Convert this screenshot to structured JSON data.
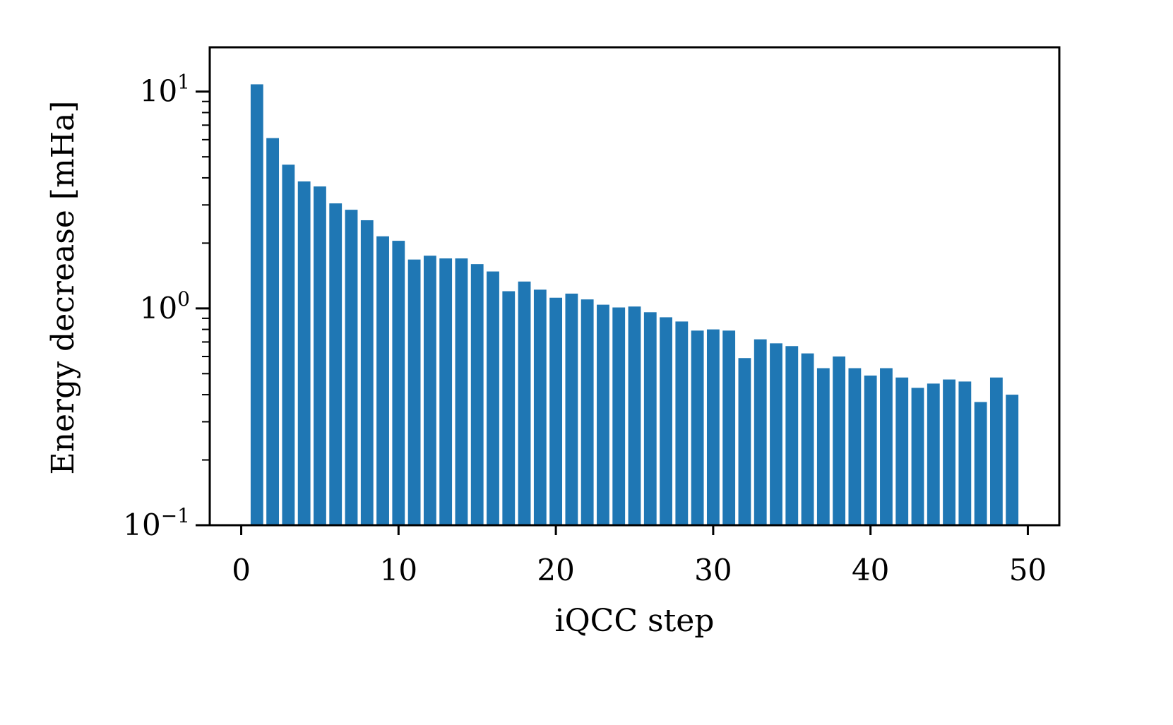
{
  "chart_data": {
    "type": "bar",
    "x": [
      1,
      2,
      3,
      4,
      5,
      6,
      7,
      8,
      9,
      10,
      11,
      12,
      13,
      14,
      15,
      16,
      17,
      18,
      19,
      20,
      21,
      22,
      23,
      24,
      25,
      26,
      27,
      28,
      29,
      30,
      31,
      32,
      33,
      34,
      35,
      36,
      37,
      38,
      39,
      40,
      41,
      42,
      43,
      44,
      45,
      46,
      47,
      48,
      49
    ],
    "values": [
      10.8,
      6.1,
      4.6,
      3.85,
      3.65,
      3.05,
      2.85,
      2.55,
      2.15,
      2.05,
      1.68,
      1.75,
      1.7,
      1.7,
      1.6,
      1.48,
      1.2,
      1.33,
      1.22,
      1.12,
      1.17,
      1.1,
      1.04,
      1.01,
      1.02,
      0.96,
      0.91,
      0.87,
      0.79,
      0.8,
      0.79,
      0.59,
      0.72,
      0.69,
      0.67,
      0.62,
      0.53,
      0.6,
      0.53,
      0.49,
      0.53,
      0.48,
      0.43,
      0.45,
      0.47,
      0.46,
      0.37,
      0.48,
      0.4
    ],
    "color": "#1f77b4",
    "xlabel": "iQCC step",
    "ylabel": "Energy decrease [mHa]",
    "xlim": [
      -2,
      52
    ],
    "ylim": [
      0.1,
      16
    ],
    "yscale": "log",
    "xticks": [
      0,
      10,
      20,
      30,
      40,
      50
    ],
    "xtick_labels": [
      "0",
      "10",
      "20",
      "30",
      "40",
      "50"
    ],
    "yticks": [
      0.1,
      1,
      10
    ],
    "ytick_labels": [
      {
        "base": "10",
        "exp": "−1"
      },
      {
        "base": "10",
        "exp": "0"
      },
      {
        "base": "10",
        "exp": "1"
      }
    ],
    "grid": false,
    "legend": false
  }
}
